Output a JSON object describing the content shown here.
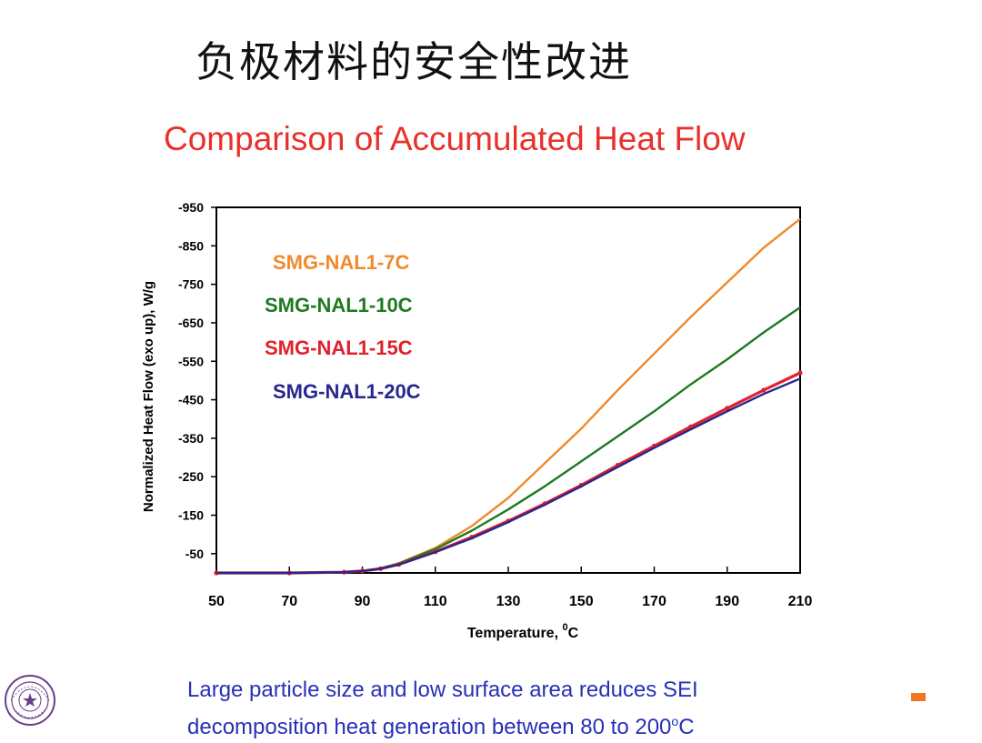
{
  "slide": {
    "title": "负极材料的安全性改进",
    "caption_line1": "Large particle size and low surface area reduces SEI",
    "caption_line2_prefix": "decomposition heat generation between 80 to 200",
    "caption_line2_sup": "o",
    "caption_line2_suffix": "C"
  },
  "colors": {
    "title_red": "#e8312b",
    "caption_blue": "#2731b6",
    "bullet_orange": "#f07820"
  },
  "chart_data": {
    "type": "line",
    "title": "Comparison of Accumulated Heat Flow",
    "xlabel": "Temperature, ",
    "xlabel_sup": "0",
    "xlabel_suffix": "C",
    "ylabel": "Normalized Heat Flow (exo up), W/g",
    "xlim": [
      50,
      210
    ],
    "ylim": [
      0,
      -950
    ],
    "x_ticks": [
      "50",
      "70",
      "90",
      "110",
      "130",
      "150",
      "170",
      "190",
      "210"
    ],
    "y_ticks": [
      "-950",
      "-850",
      "-750",
      "-650",
      "-550",
      "-450",
      "-350",
      "-250",
      "-150",
      "-50"
    ],
    "legend_placement": "top-left",
    "grid": false,
    "series": [
      {
        "name": "SMG-NAL1-7C",
        "color": "#f08a2c",
        "x": [
          50,
          70,
          85,
          90,
          95,
          100,
          110,
          120,
          130,
          140,
          150,
          160,
          170,
          180,
          190,
          200,
          210
        ],
        "y": [
          0,
          0,
          -2,
          -5,
          -12,
          -25,
          -65,
          -122,
          -195,
          -285,
          -375,
          -475,
          -570,
          -665,
          -755,
          -845,
          -920
        ]
      },
      {
        "name": "SMG-NAL1-10C",
        "color": "#1f7a1f",
        "x": [
          50,
          70,
          85,
          90,
          95,
          100,
          110,
          120,
          130,
          140,
          150,
          160,
          170,
          180,
          190,
          200,
          210
        ],
        "y": [
          0,
          0,
          -2,
          -5,
          -12,
          -24,
          -62,
          -110,
          -165,
          -225,
          -290,
          -355,
          -420,
          -490,
          -555,
          -625,
          -690
        ]
      },
      {
        "name": "SMG-NAL1-15C",
        "color": "#e0202c",
        "x": [
          50,
          70,
          85,
          90,
          95,
          100,
          110,
          120,
          130,
          140,
          150,
          160,
          170,
          180,
          190,
          200,
          210
        ],
        "y": [
          0,
          0,
          -2,
          -5,
          -11,
          -22,
          -55,
          -93,
          -135,
          -180,
          -228,
          -280,
          -330,
          -380,
          -428,
          -475,
          -520
        ]
      },
      {
        "name": "SMG-NAL1-20C",
        "color": "#27278f",
        "x": [
          50,
          70,
          85,
          90,
          95,
          100,
          110,
          120,
          130,
          140,
          150,
          160,
          170,
          180,
          190,
          200,
          210
        ],
        "y": [
          0,
          0,
          -2,
          -5,
          -11,
          -22,
          -54,
          -90,
          -132,
          -177,
          -225,
          -275,
          -325,
          -373,
          -420,
          -465,
          -505
        ]
      }
    ]
  }
}
